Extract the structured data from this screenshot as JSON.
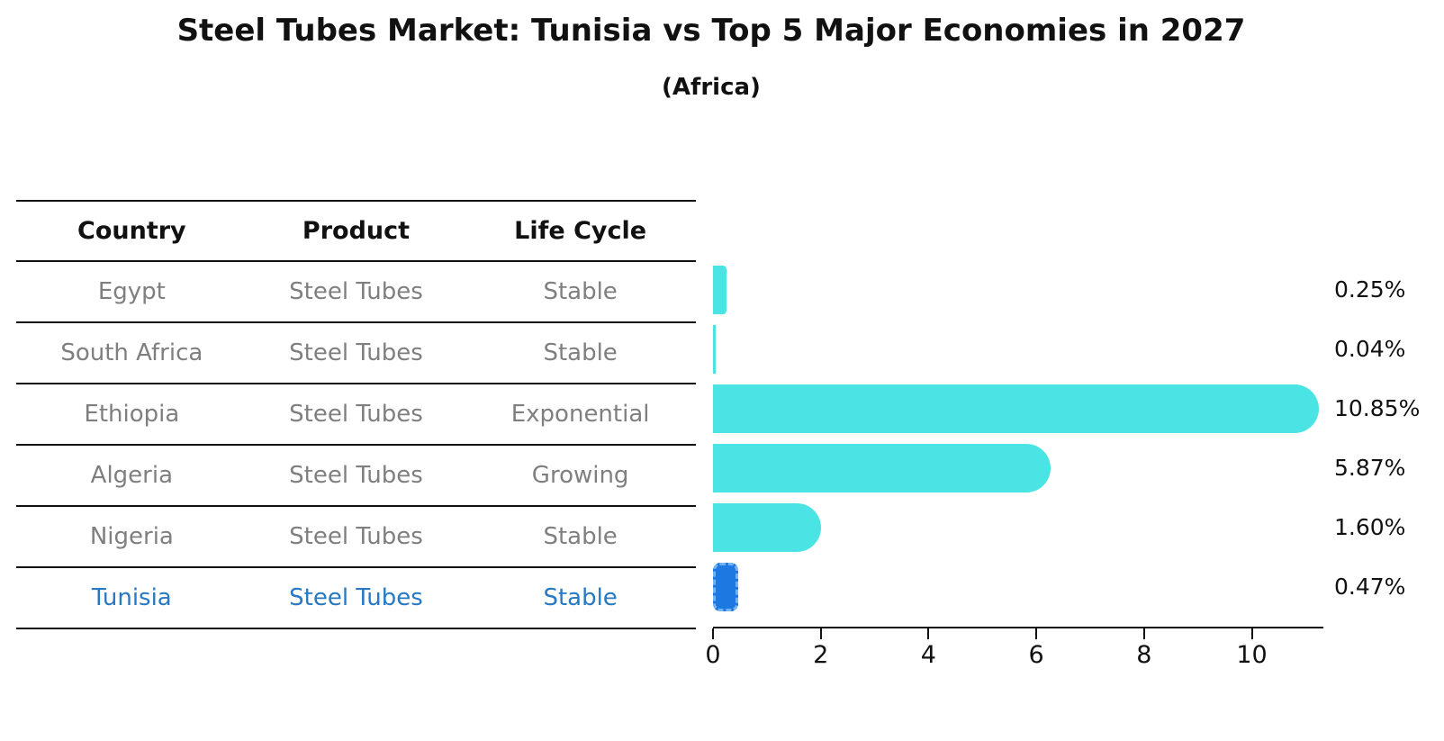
{
  "title": "Steel Tubes Market: Tunisia vs Top 5 Major Economies in 2027",
  "subtitle": "(Africa)",
  "table": {
    "headers": [
      "Country",
      "Product",
      "Life Cycle"
    ],
    "rows": [
      {
        "country": "Egypt",
        "product": "Steel Tubes",
        "life_cycle": "Stable",
        "highlight": false
      },
      {
        "country": "South Africa",
        "product": "Steel Tubes",
        "life_cycle": "Stable",
        "highlight": false
      },
      {
        "country": "Ethiopia",
        "product": "Steel Tubes",
        "life_cycle": "Exponential",
        "highlight": false
      },
      {
        "country": "Algeria",
        "product": "Steel Tubes",
        "life_cycle": "Growing",
        "highlight": false
      },
      {
        "country": "Nigeria",
        "product": "Steel Tubes",
        "life_cycle": "Stable",
        "highlight": true
      }
    ]
  },
  "chart_data": {
    "type": "bar",
    "orientation": "horizontal",
    "title": "Steel Tubes Market: Tunisia vs Top 5 Major Economies in 2027",
    "subtitle": "(Africa)",
    "categories": [
      "Egypt",
      "South Africa",
      "Ethiopia",
      "Algeria",
      "Nigeria",
      "Tunisia"
    ],
    "values": [
      0.25,
      0.04,
      10.85,
      5.87,
      1.6,
      0.47
    ],
    "value_labels": [
      "0.25%",
      "0.04%",
      "10.85%",
      "5.87%",
      "1.60%",
      "0.47%"
    ],
    "x_ticks": [
      0,
      2,
      4,
      6,
      8,
      10
    ],
    "xlim": [
      0,
      11.33
    ],
    "grid": false,
    "legend": "none",
    "highlight_index": 5,
    "bar_color": "#4be4e4",
    "highlight_bar_color": "#1d78e2",
    "highlight_bar_edge_color": "#74b3f2"
  },
  "colors": {
    "text": "#111111",
    "muted_text": "#7f7f7f",
    "highlight_text": "#2679c2",
    "line": "#111111",
    "background": "#ffffff"
  }
}
